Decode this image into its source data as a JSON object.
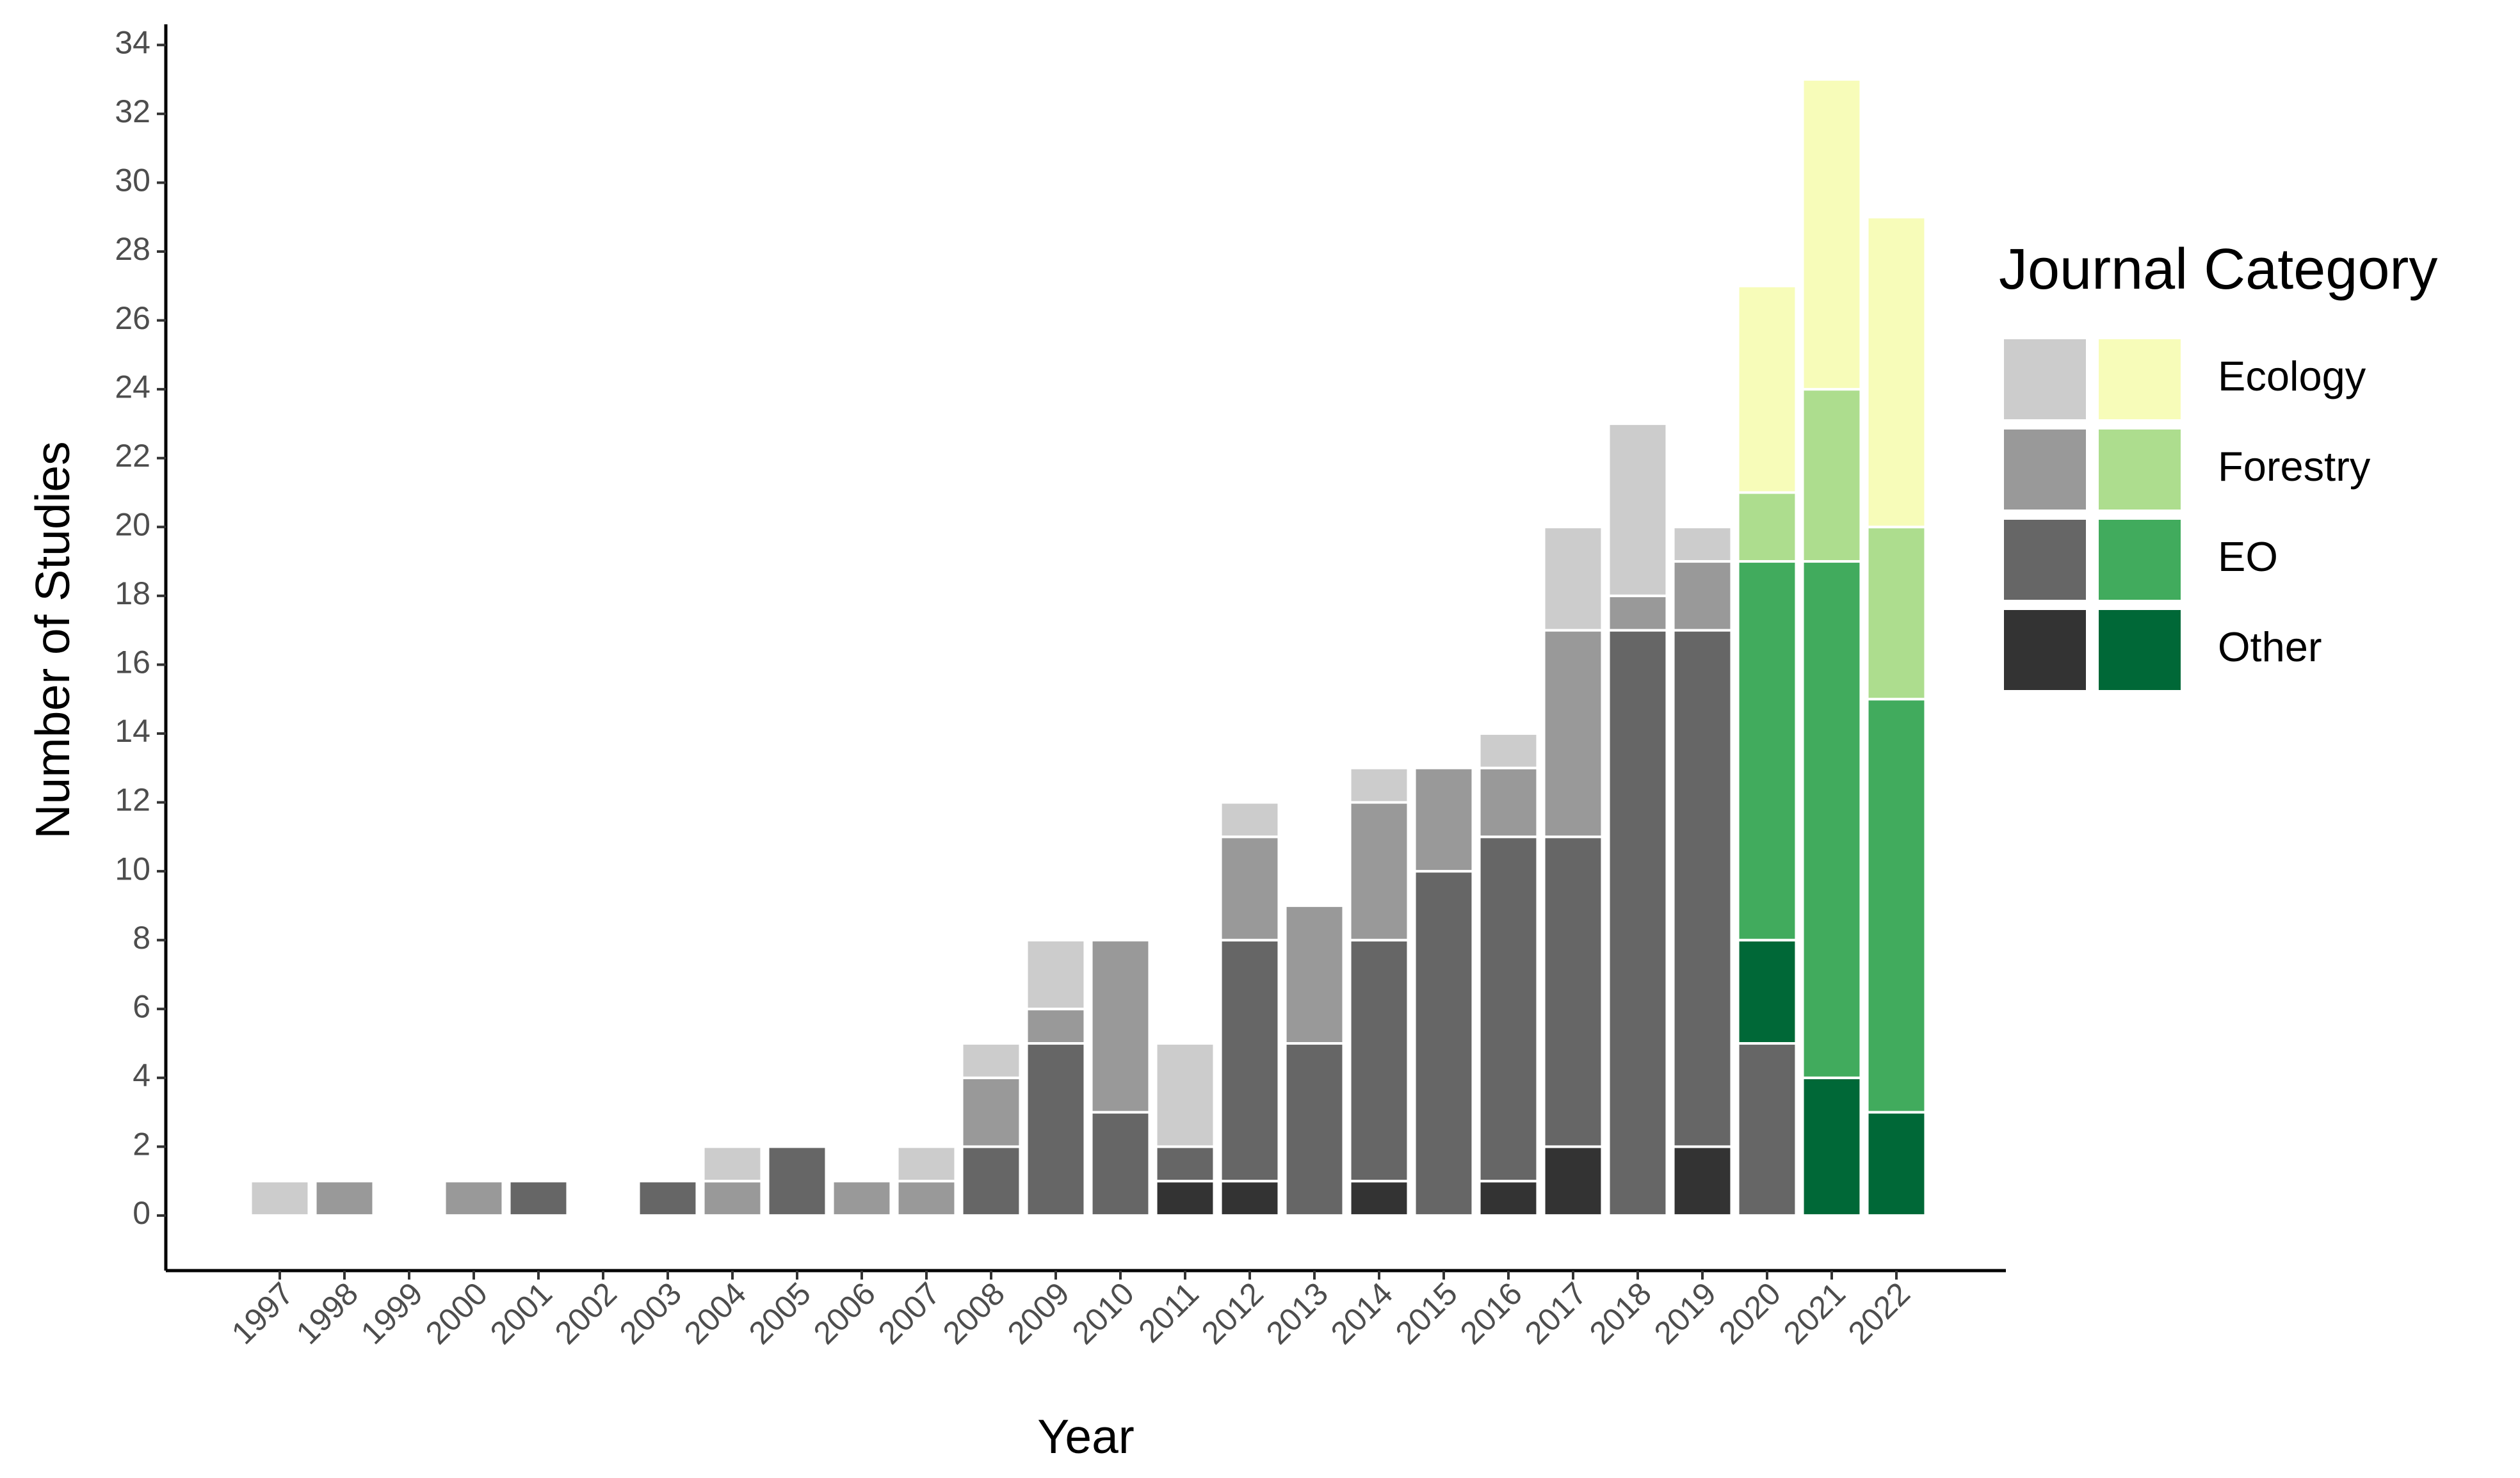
{
  "chart_data": {
    "type": "stacked-bar",
    "x_label": "Year",
    "y_label": "Number of Studies",
    "categories": [
      "1997",
      "1998",
      "1999",
      "2000",
      "2001",
      "2002",
      "2003",
      "2004",
      "2005",
      "2006",
      "2007",
      "2008",
      "2009",
      "2010",
      "2011",
      "2012",
      "2013",
      "2014",
      "2015",
      "2016",
      "2017",
      "2018",
      "2019",
      "2020",
      "2021",
      "2022"
    ],
    "series": [
      {
        "name": "Other",
        "color": "#333333",
        "values": [
          0,
          0,
          0,
          0,
          0,
          0,
          0,
          0,
          0,
          0,
          0,
          0,
          0,
          0,
          1,
          1,
          0,
          1,
          0,
          1,
          2,
          0,
          2,
          0,
          null,
          null
        ]
      },
      {
        "name": "EO",
        "color": "#666666",
        "values": [
          0,
          0,
          0,
          0,
          1,
          0,
          1,
          0,
          2,
          0,
          0,
          2,
          5,
          3,
          1,
          7,
          5,
          7,
          10,
          10,
          9,
          17,
          15,
          5,
          null,
          null
        ]
      },
      {
        "name": "Forestry",
        "color": "#999999",
        "values": [
          0,
          1,
          0,
          1,
          0,
          0,
          0,
          1,
          0,
          1,
          1,
          2,
          1,
          5,
          0,
          3,
          4,
          4,
          3,
          2,
          6,
          1,
          2,
          0,
          null,
          null
        ]
      },
      {
        "name": "Ecology",
        "color": "#cccccc",
        "values": [
          1,
          0,
          0,
          0,
          0,
          0,
          0,
          1,
          0,
          0,
          1,
          1,
          2,
          0,
          3,
          1,
          0,
          1,
          0,
          1,
          3,
          5,
          1,
          0,
          null,
          null
        ]
      }
    ],
    "series_green": [
      {
        "color": "#006837",
        "values": [
          null,
          null,
          null,
          null,
          null,
          null,
          null,
          null,
          null,
          null,
          null,
          null,
          null,
          null,
          null,
          null,
          null,
          null,
          null,
          null,
          null,
          null,
          null,
          3,
          4,
          3
        ]
      },
      {
        "color": "#41ab5d",
        "values": [
          null,
          null,
          null,
          null,
          null,
          null,
          null,
          null,
          null,
          null,
          null,
          null,
          null,
          null,
          null,
          null,
          null,
          null,
          null,
          null,
          null,
          null,
          null,
          11,
          15,
          12
        ]
      },
      {
        "color": "#addd8e",
        "values": [
          null,
          null,
          null,
          null,
          null,
          null,
          null,
          null,
          null,
          null,
          null,
          null,
          null,
          null,
          null,
          null,
          null,
          null,
          null,
          null,
          null,
          null,
          null,
          2,
          5,
          5
        ]
      },
      {
        "color": "#f7fcb9",
        "values": [
          null,
          null,
          null,
          null,
          null,
          null,
          null,
          null,
          null,
          null,
          null,
          null,
          null,
          null,
          null,
          null,
          null,
          null,
          null,
          null,
          null,
          null,
          null,
          6,
          9,
          9
        ]
      }
    ],
    "legend_title": "Journal Category",
    "ylim": [
      -1.6,
      34.6
    ],
    "yticks": [
      0,
      2,
      4,
      6,
      8,
      10,
      12,
      14,
      16,
      18,
      20,
      22,
      24,
      26,
      28,
      30,
      32,
      34
    ],
    "grid": false
  }
}
